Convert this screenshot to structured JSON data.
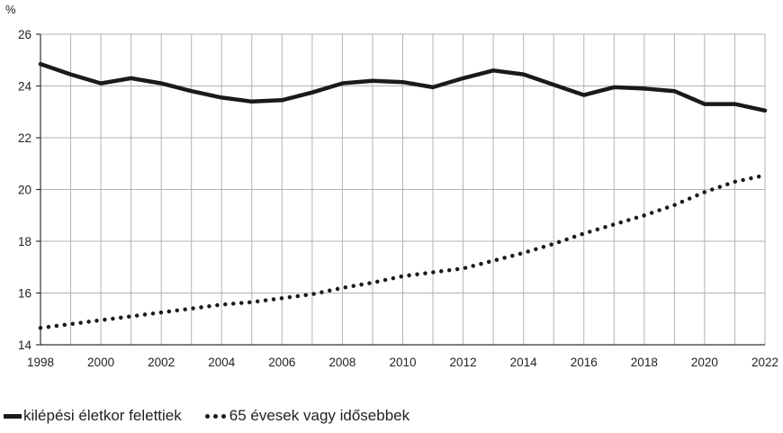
{
  "chart_data": {
    "type": "line",
    "unit_label": "%",
    "x": [
      1998,
      1999,
      2000,
      2001,
      2002,
      2003,
      2004,
      2005,
      2006,
      2007,
      2008,
      2009,
      2010,
      2011,
      2012,
      2013,
      2014,
      2015,
      2016,
      2017,
      2018,
      2019,
      2020,
      2021,
      2022
    ],
    "x_ticks": [
      "1998",
      "2000",
      "2002",
      "2004",
      "2006",
      "2008",
      "2010",
      "2012",
      "2014",
      "2016",
      "2018",
      "2020",
      "2022"
    ],
    "y_ticks": [
      "14",
      "16",
      "18",
      "20",
      "22",
      "24",
      "26"
    ],
    "ylim": [
      14,
      26
    ],
    "xlim": [
      1998,
      2022
    ],
    "grid": true,
    "legend_position": "bottom-left",
    "series": [
      {
        "name": "kilépési életkor felettiek",
        "style": "solid",
        "color": "#1a1a1a",
        "values": [
          24.85,
          24.45,
          24.1,
          24.3,
          24.1,
          23.8,
          23.55,
          23.4,
          23.45,
          23.75,
          24.1,
          24.2,
          24.15,
          23.95,
          24.3,
          24.6,
          24.45,
          24.05,
          23.65,
          23.95,
          23.9,
          23.8,
          23.3,
          23.3,
          23.05
        ]
      },
      {
        "name": "65 évesek vagy idősebbek",
        "style": "dotted",
        "color": "#1a1a1a",
        "values": [
          14.65,
          14.8,
          14.95,
          15.1,
          15.25,
          15.4,
          15.55,
          15.65,
          15.8,
          15.95,
          16.2,
          16.4,
          16.65,
          16.8,
          16.95,
          17.25,
          17.55,
          17.9,
          18.3,
          18.65,
          19.0,
          19.4,
          19.9,
          20.3,
          20.55
        ]
      }
    ]
  }
}
